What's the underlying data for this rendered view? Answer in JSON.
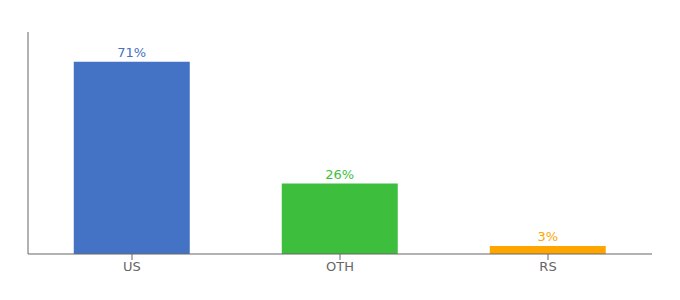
{
  "chart_data": {
    "type": "bar",
    "categories": [
      "US",
      "OTH",
      "RS"
    ],
    "values": [
      71,
      26,
      3
    ],
    "value_labels": [
      "71%",
      "26%",
      "3%"
    ],
    "colors": [
      "#4472c4",
      "#3dbf3d",
      "#ffa500"
    ],
    "ylim": [
      0,
      82
    ],
    "data_labels": true,
    "tick_labels": "x",
    "grid": false
  }
}
